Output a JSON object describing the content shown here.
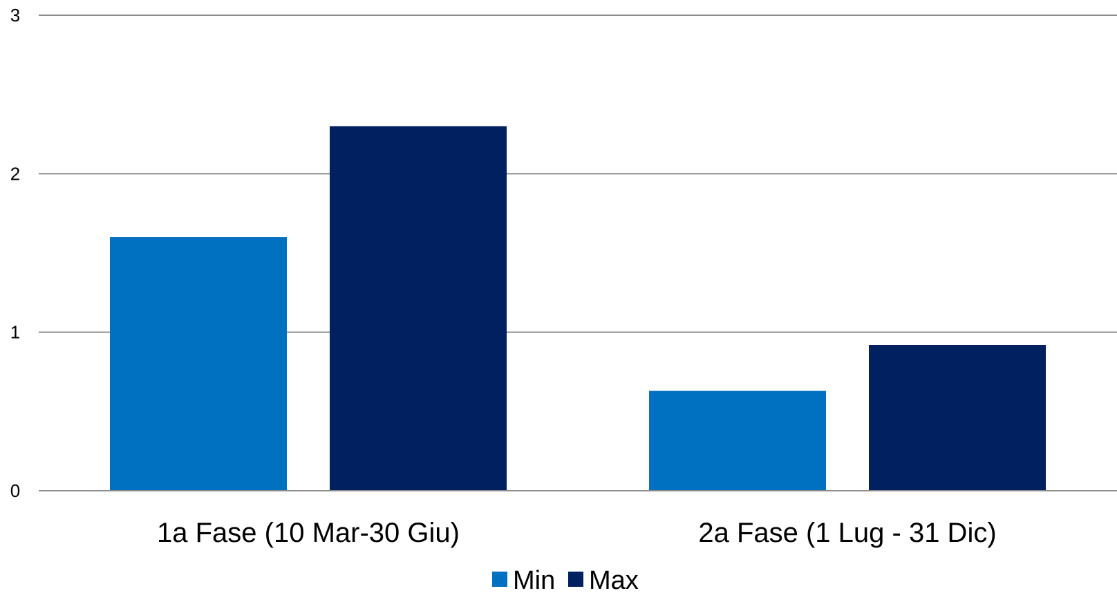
{
  "chart_data": {
    "type": "bar",
    "categories": [
      "1a Fase (10 Mar-30 Giu)",
      "2a Fase (1 Lug - 31 Dic)"
    ],
    "series": [
      {
        "name": "Min",
        "values": [
          1.6,
          0.63
        ],
        "color": "#0070C0"
      },
      {
        "name": "Max",
        "values": [
          2.3,
          0.92
        ],
        "color": "#002060"
      }
    ],
    "ylim": [
      0,
      3
    ],
    "yticks": [
      "0",
      "1",
      "2",
      "3"
    ],
    "grid": true,
    "legend": "bottom-center"
  }
}
